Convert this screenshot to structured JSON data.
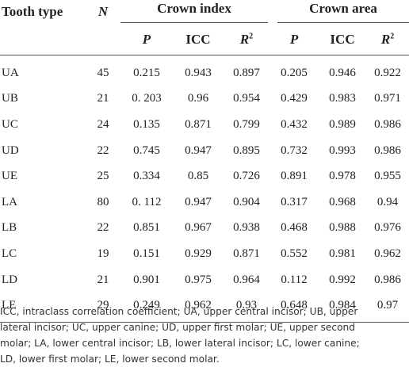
{
  "table": {
    "headers": {
      "tooth_type": "Tooth type",
      "n": "N",
      "crown_index": "Crown index",
      "crown_area": "Crown area",
      "p": "P",
      "icc": "ICC",
      "r2_base": "R",
      "r2_sup": "2"
    },
    "rows": [
      {
        "tooth": "UA",
        "n": "45",
        "ci_p": "0.215",
        "ci_icc": "0.943",
        "ci_r2": "0.897",
        "ca_p": "0.205",
        "ca_icc": "0.946",
        "ca_r2": "0.922"
      },
      {
        "tooth": "UB",
        "n": "21",
        "ci_p": "0. 203",
        "ci_icc": "0.96",
        "ci_r2": "0.954",
        "ca_p": "0.429",
        "ca_icc": "0.983",
        "ca_r2": "0.971"
      },
      {
        "tooth": "UC",
        "n": "24",
        "ci_p": "0.135",
        "ci_icc": "0.871",
        "ci_r2": "0.799",
        "ca_p": "0.432",
        "ca_icc": "0.989",
        "ca_r2": "0.986"
      },
      {
        "tooth": "UD",
        "n": "22",
        "ci_p": "0.745",
        "ci_icc": "0.947",
        "ci_r2": "0.895",
        "ca_p": "0.732",
        "ca_icc": "0.993",
        "ca_r2": "0.986"
      },
      {
        "tooth": "UE",
        "n": "25",
        "ci_p": "0.334",
        "ci_icc": "0.85",
        "ci_r2": "0.726",
        "ca_p": "0.891",
        "ca_icc": "0.978",
        "ca_r2": "0.955"
      },
      {
        "tooth": "LA",
        "n": "80",
        "ci_p": "0. 112",
        "ci_icc": "0.947",
        "ci_r2": "0.904",
        "ca_p": "0.317",
        "ca_icc": "0.968",
        "ca_r2": "0.94"
      },
      {
        "tooth": "LB",
        "n": "22",
        "ci_p": "0.851",
        "ci_icc": "0.967",
        "ci_r2": "0.938",
        "ca_p": "0.468",
        "ca_icc": "0.988",
        "ca_r2": "0.976"
      },
      {
        "tooth": "LC",
        "n": "19",
        "ci_p": "0.151",
        "ci_icc": "0.929",
        "ci_r2": "0.871",
        "ca_p": "0.552",
        "ca_icc": "0.981",
        "ca_r2": "0.962"
      },
      {
        "tooth": "LD",
        "n": "21",
        "ci_p": "0.901",
        "ci_icc": "0.975",
        "ci_r2": "0.964",
        "ca_p": "0.112",
        "ca_icc": "0.992",
        "ca_r2": "0.986"
      },
      {
        "tooth": "LE",
        "n": "29",
        "ci_p": "0.249",
        "ci_icc": "0.962",
        "ci_r2": "0.93",
        "ca_p": "0.648",
        "ca_icc": "0.984",
        "ca_r2": "0.97"
      }
    ]
  },
  "footnote": {
    "line1": "ICC, intraclass correlation coefficient; UA, upper central incisor; UB, upper",
    "line2": "lateral incisor; UC, upper canine; UD, upper first molar; UE, upper second",
    "line3": "molar; LA, lower central incisor; LB, lower lateral incisor; LC, lower canine;",
    "line4": "LD, lower first molar; LE, lower second molar."
  }
}
